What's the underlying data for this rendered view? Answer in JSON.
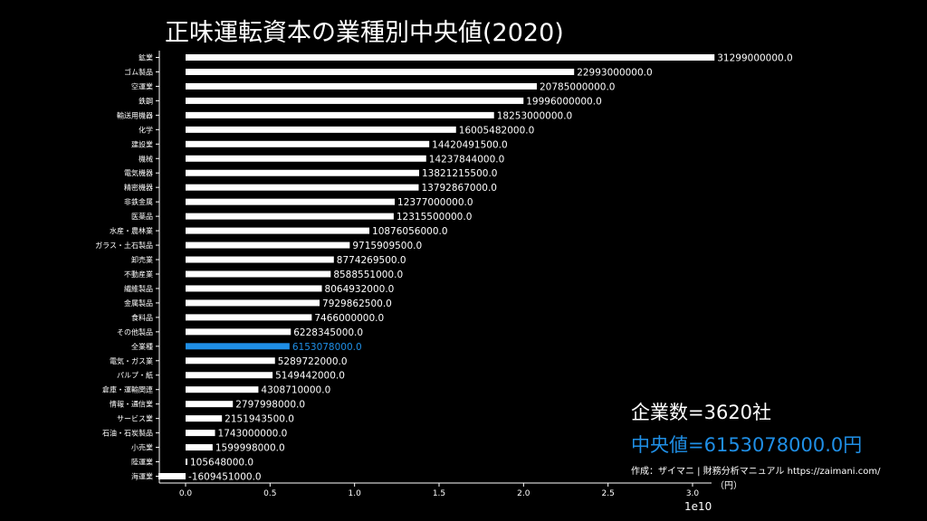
{
  "header": {
    "title": "正味運転資本の業種別中央値(2020)"
  },
  "stats": {
    "count_text": "企業数=3620社",
    "median_text": "中央値=6153078000.0円"
  },
  "footer": {
    "credit": "作成：ザイマニ | 財務分析マニュアル https://zaimani.com/",
    "unit": "（円）",
    "axis_exponent": "1e10"
  },
  "colors": {
    "bar": "#ffffff",
    "highlight": "#1f8fe6",
    "background": "#000000"
  },
  "chart_data": {
    "type": "bar",
    "orientation": "horizontal",
    "categories": [
      "鉱業",
      "ゴム製品",
      "空運業",
      "鉄鋼",
      "輸送用機器",
      "化学",
      "建設業",
      "機械",
      "電気機器",
      "精密機器",
      "非鉄金属",
      "医薬品",
      "水産・農林業",
      "ガラス・土石製品",
      "卸売業",
      "不動産業",
      "繊維製品",
      "金属製品",
      "食料品",
      "その他製品",
      "全業種",
      "電気・ガス業",
      "パルプ・紙",
      "倉庫・運輸関連",
      "情報・通信業",
      "サービス業",
      "石油・石炭製品",
      "小売業",
      "陸運業",
      "海運業"
    ],
    "values": [
      31299000000,
      22993000000,
      20785000000,
      19996000000,
      18253000000,
      16005482000,
      14420491500,
      14237844000,
      13821215500,
      13792867000,
      12377000000,
      12315500000,
      10876056000,
      9715909500,
      8774269500,
      8588551000,
      8064932000,
      7929862500,
      7466000000,
      6228345000,
      6153078000,
      5289722000,
      5149442000,
      4308710000,
      2797998000,
      2151943500,
      1743000000,
      1599998000,
      105648000,
      -1609451000
    ],
    "value_labels": [
      "31299000000.0",
      "22993000000.0",
      "20785000000.0",
      "19996000000.0",
      "18253000000.0",
      "16005482000.0",
      "14420491500.0",
      "14237844000.0",
      "13821215500.0",
      "13792867000.0",
      "12377000000.0",
      "12315500000.0",
      "10876056000.0",
      "9715909500.0",
      "8774269500.0",
      "8588551000.0",
      "8064932000.0",
      "7929862500.0",
      "7466000000.0",
      "6228345000.0",
      "6153078000.0",
      "5289722000.0",
      "5149442000.0",
      "4308710000.0",
      "2797998000.0",
      "2151943500.0",
      "1743000000.0",
      "1599998000.0",
      "105648000.0",
      "-1609451000.0"
    ],
    "highlight_category": "全業種",
    "x_ticks": [
      0,
      5000000000,
      10000000000,
      15000000000,
      20000000000,
      25000000000,
      30000000000
    ],
    "x_tick_labels": [
      "0.0",
      "0.5",
      "1.0",
      "1.5",
      "2.0",
      "2.5",
      "3.0"
    ],
    "xlim": [
      -1900000000,
      33000000000
    ],
    "grid": false
  }
}
